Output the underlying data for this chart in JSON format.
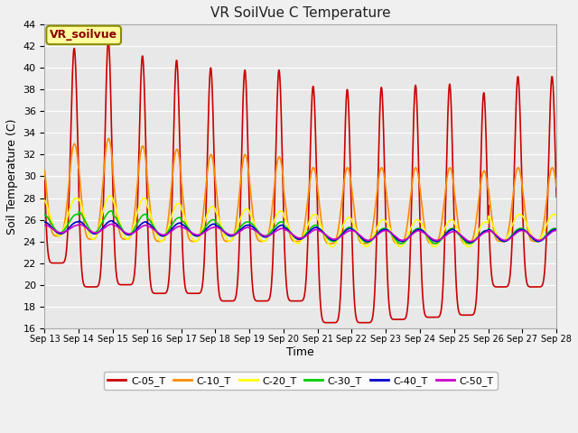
{
  "title": "VR SoilVue C Temperature",
  "xlabel": "Time",
  "ylabel": "Soil Temperature (C)",
  "ylim": [
    16,
    44
  ],
  "yticks": [
    16,
    18,
    20,
    22,
    24,
    26,
    28,
    30,
    32,
    34,
    36,
    38,
    40,
    42,
    44
  ],
  "x_tick_labels": [
    "Sep 13",
    "Sep 14",
    "Sep 15",
    "Sep 16",
    "Sep 17",
    "Sep 18",
    "Sep 19",
    "Sep 20",
    "Sep 21",
    "Sep 22",
    "Sep 23",
    "Sep 24",
    "Sep 25",
    "Sep 26",
    "Sep 27",
    "Sep 28"
  ],
  "figure_bg": "#f0f0f0",
  "plot_bg": "#e8e8e8",
  "grid_color": "#ffffff",
  "legend_label": "VR_soilvue",
  "legend_bg": "#ffffa0",
  "legend_border": "#8b8b00",
  "series": [
    {
      "name": "C-05_T",
      "color": "#cc0000",
      "linewidth": 1.2
    },
    {
      "name": "C-10_T",
      "color": "#ff8c00",
      "linewidth": 1.2
    },
    {
      "name": "C-20_T",
      "color": "#ffff00",
      "linewidth": 1.2
    },
    {
      "name": "C-30_T",
      "color": "#00cc00",
      "linewidth": 1.2
    },
    {
      "name": "C-40_T",
      "color": "#0000cc",
      "linewidth": 1.2
    },
    {
      "name": "C-50_T",
      "color": "#cc00cc",
      "linewidth": 1.2
    }
  ],
  "n_days": 15,
  "pts_per_day": 144,
  "c05_peaks": [
    41.8,
    42.5,
    41.1,
    40.7,
    40.0,
    39.8,
    39.8,
    38.3,
    38.0,
    38.2,
    38.4,
    38.5,
    37.7,
    39.2,
    39.2
  ],
  "c05_mins": [
    22.0,
    19.8,
    20.0,
    19.2,
    19.2,
    18.5,
    18.5,
    18.5,
    16.5,
    16.5,
    16.8,
    17.0,
    17.2,
    19.8,
    19.8
  ],
  "c10_peaks": [
    33.0,
    33.5,
    32.8,
    32.5,
    32.0,
    32.0,
    31.8,
    30.8,
    30.8,
    30.8,
    30.8,
    30.8,
    30.5,
    30.8,
    30.8
  ],
  "c10_mins": [
    24.5,
    24.2,
    24.2,
    24.0,
    24.0,
    24.0,
    24.0,
    24.0,
    23.8,
    23.8,
    23.8,
    23.8,
    23.8,
    24.0,
    24.0
  ],
  "c20_peaks": [
    28.0,
    28.2,
    28.0,
    27.5,
    27.2,
    27.0,
    26.8,
    26.5,
    26.2,
    26.0,
    26.0,
    26.0,
    25.8,
    26.5,
    26.5
  ],
  "c20_mins": [
    24.5,
    24.2,
    24.2,
    24.0,
    24.0,
    24.0,
    24.0,
    23.8,
    23.5,
    23.5,
    23.5,
    23.5,
    23.5,
    24.0,
    24.0
  ],
  "c30_peaks": [
    26.5,
    26.8,
    26.5,
    26.2,
    26.0,
    25.8,
    25.8,
    25.5,
    25.3,
    25.2,
    25.2,
    25.2,
    25.0,
    25.2,
    25.2
  ],
  "c30_mins": [
    24.8,
    24.8,
    24.6,
    24.5,
    24.5,
    24.5,
    24.5,
    24.2,
    24.0,
    23.9,
    23.8,
    23.8,
    23.8,
    24.0,
    24.0
  ],
  "c40_peaks": [
    25.8,
    25.9,
    25.8,
    25.7,
    25.6,
    25.5,
    25.5,
    25.3,
    25.2,
    25.1,
    25.1,
    25.1,
    25.0,
    25.1,
    25.1
  ],
  "c40_mins": [
    24.7,
    24.7,
    24.6,
    24.5,
    24.5,
    24.5,
    24.4,
    24.2,
    24.1,
    24.0,
    24.0,
    24.0,
    23.9,
    24.0,
    24.0
  ],
  "c50_peaks": [
    25.5,
    25.6,
    25.5,
    25.4,
    25.3,
    25.3,
    25.2,
    25.1,
    25.0,
    25.0,
    25.0,
    24.9,
    24.9,
    25.0,
    25.0
  ],
  "c50_mins": [
    24.8,
    24.8,
    24.7,
    24.6,
    24.6,
    24.6,
    24.5,
    24.3,
    24.2,
    24.1,
    24.1,
    24.1,
    24.0,
    24.1,
    24.1
  ]
}
